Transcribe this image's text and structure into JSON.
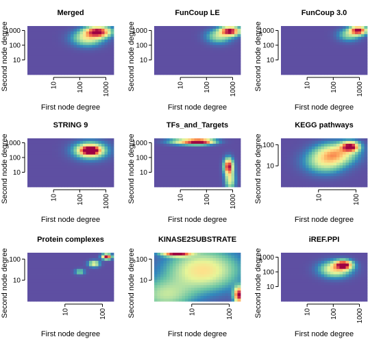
{
  "chart_data": [
    {
      "type": "heatmap",
      "title": "Merged",
      "xlabel": "First node degree",
      "ylabel": "Second node degree",
      "x_scale": "log",
      "y_scale": "log",
      "xlim": [
        1,
        2000
      ],
      "ylim": [
        1,
        2000
      ],
      "x_ticks": [
        10,
        100,
        1000
      ],
      "y_ticks": [
        10,
        100,
        1000
      ],
      "grid": false,
      "colormap": [
        "#5E4FA2",
        "#3288BD",
        "#66C2A5",
        "#ABDDA4",
        "#E6F598",
        "#FEE08B",
        "#FDAE61",
        "#F46D43",
        "#D53E4F",
        "#9E0142"
      ],
      "hotspots": [
        {
          "x": 500,
          "y": 800,
          "intensity": 1.0,
          "spread_x": 0.45,
          "spread_y": 0.35
        },
        {
          "x": 200,
          "y": 300,
          "intensity": 0.45,
          "spread_x": 0.55,
          "spread_y": 0.5
        }
      ]
    },
    {
      "type": "heatmap",
      "title": "FunCoup LE",
      "xlabel": "First node degree",
      "ylabel": "Second node degree",
      "x_scale": "log",
      "y_scale": "log",
      "xlim": [
        1,
        2000
      ],
      "ylim": [
        1,
        2000
      ],
      "x_ticks": [
        10,
        100,
        1000
      ],
      "y_ticks": [
        10,
        100,
        1000
      ],
      "grid": false,
      "hotspots": [
        {
          "x": 800,
          "y": 900,
          "intensity": 1.0,
          "spread_x": 0.35,
          "spread_y": 0.3
        },
        {
          "x": 300,
          "y": 400,
          "intensity": 0.35,
          "spread_x": 0.45,
          "spread_y": 0.45
        }
      ]
    },
    {
      "type": "heatmap",
      "title": "FunCoup 3.0",
      "xlabel": "First node degree",
      "ylabel": "Second node degree",
      "x_scale": "log",
      "y_scale": "log",
      "xlim": [
        1,
        2000
      ],
      "ylim": [
        1,
        2000
      ],
      "x_ticks": [
        10,
        100,
        1000
      ],
      "y_ticks": [
        10,
        100,
        1000
      ],
      "grid": false,
      "hotspots": [
        {
          "x": 900,
          "y": 1000,
          "intensity": 1.0,
          "spread_x": 0.3,
          "spread_y": 0.28
        },
        {
          "x": 400,
          "y": 500,
          "intensity": 0.3,
          "spread_x": 0.4,
          "spread_y": 0.4
        }
      ]
    },
    {
      "type": "heatmap",
      "title": "STRING 9",
      "xlabel": "First node degree",
      "ylabel": "Second node degree",
      "x_scale": "log",
      "y_scale": "log",
      "xlim": [
        1,
        2000
      ],
      "ylim": [
        1,
        2000
      ],
      "x_ticks": [
        10,
        100,
        1000
      ],
      "y_ticks": [
        10,
        100,
        1000
      ],
      "grid": false,
      "hotspots": [
        {
          "x": 250,
          "y": 300,
          "intensity": 1.0,
          "spread_x": 0.35,
          "spread_y": 0.3
        },
        {
          "x": 250,
          "y": 300,
          "intensity": 0.5,
          "spread_x": 0.6,
          "spread_y": 0.55
        }
      ]
    },
    {
      "type": "heatmap",
      "title": "TFs_and_Targets",
      "xlabel": "First node degree",
      "ylabel": "Second node degree",
      "x_scale": "log",
      "y_scale": "log",
      "xlim": [
        1,
        2000
      ],
      "ylim": [
        1,
        2000
      ],
      "x_ticks": [
        10,
        100,
        1000
      ],
      "y_ticks": [
        10,
        100,
        1000
      ],
      "grid": false,
      "hotspots": [
        {
          "x": 60,
          "y": 1200,
          "intensity": 1.0,
          "spread_x": 0.5,
          "spread_y": 0.18
        },
        {
          "x": 700,
          "y": 25,
          "intensity": 1.0,
          "spread_x": 0.16,
          "spread_y": 0.5
        },
        {
          "x": 15,
          "y": 1200,
          "intensity": 0.5,
          "spread_x": 0.6,
          "spread_y": 0.2
        },
        {
          "x": 800,
          "y": 3,
          "intensity": 0.45,
          "spread_x": 0.18,
          "spread_y": 0.6
        }
      ]
    },
    {
      "type": "heatmap",
      "title": "KEGG pathways",
      "xlabel": "First node degree",
      "ylabel": "Second node degree",
      "x_scale": "log",
      "y_scale": "log",
      "xlim": [
        1,
        200
      ],
      "ylim": [
        1,
        200
      ],
      "x_ticks": [
        10,
        100
      ],
      "y_ticks": [
        10,
        100
      ],
      "grid": false,
      "hotspots": [
        {
          "x": 70,
          "y": 80,
          "intensity": 1.0,
          "spread_x": 0.22,
          "spread_y": 0.22
        },
        {
          "x": 30,
          "y": 40,
          "intensity": 0.55,
          "spread_x": 0.5,
          "spread_y": 0.45
        },
        {
          "x": 15,
          "y": 15,
          "intensity": 0.4,
          "spread_x": 0.5,
          "spread_y": 0.5
        }
      ]
    },
    {
      "type": "heatmap",
      "title": "Protein complexes",
      "xlabel": "First node degree",
      "ylabel": "Second node degree",
      "x_scale": "log",
      "y_scale": "log",
      "xlim": [
        1,
        200
      ],
      "ylim": [
        1,
        200
      ],
      "x_ticks": [
        10,
        100
      ],
      "y_ticks": [
        10,
        100
      ],
      "grid": false,
      "hotspots": [
        {
          "x": 130,
          "y": 130,
          "intensity": 1.0,
          "spread_x": 0.12,
          "spread_y": 0.12
        },
        {
          "x": 60,
          "y": 60,
          "intensity": 0.5,
          "spread_x": 0.14,
          "spread_y": 0.14
        },
        {
          "x": 25,
          "y": 25,
          "intensity": 0.3,
          "spread_x": 0.12,
          "spread_y": 0.12
        }
      ]
    },
    {
      "type": "heatmap",
      "title": "KINASE2SUBSTRATE",
      "xlabel": "First node degree",
      "ylabel": "Second node degree",
      "x_scale": "log",
      "y_scale": "log",
      "xlim": [
        1,
        200
      ],
      "ylim": [
        1,
        200
      ],
      "x_ticks": [
        10,
        100
      ],
      "y_ticks": [
        10,
        100
      ],
      "grid": false,
      "hotspots": [
        {
          "x": 4,
          "y": 180,
          "intensity": 1.0,
          "spread_x": 0.35,
          "spread_y": 0.12
        },
        {
          "x": 180,
          "y": 2,
          "intensity": 1.0,
          "spread_x": 0.12,
          "spread_y": 0.35
        },
        {
          "x": 20,
          "y": 30,
          "intensity": 0.55,
          "spread_x": 0.9,
          "spread_y": 0.9
        },
        {
          "x": 2,
          "y": 2,
          "intensity": 0.35,
          "spread_x": 0.7,
          "spread_y": 0.7
        }
      ]
    },
    {
      "type": "heatmap",
      "title": "iREF.PPI",
      "xlabel": "First node degree",
      "ylabel": "Second node degree",
      "x_scale": "log",
      "y_scale": "log",
      "xlim": [
        1,
        2000
      ],
      "ylim": [
        1,
        2000
      ],
      "x_ticks": [
        10,
        100,
        1000
      ],
      "y_ticks": [
        10,
        100,
        1000
      ],
      "grid": false,
      "hotspots": [
        {
          "x": 250,
          "y": 300,
          "intensity": 1.0,
          "spread_x": 0.3,
          "spread_y": 0.28
        },
        {
          "x": 120,
          "y": 150,
          "intensity": 0.55,
          "spread_x": 0.55,
          "spread_y": 0.5
        }
      ]
    }
  ]
}
